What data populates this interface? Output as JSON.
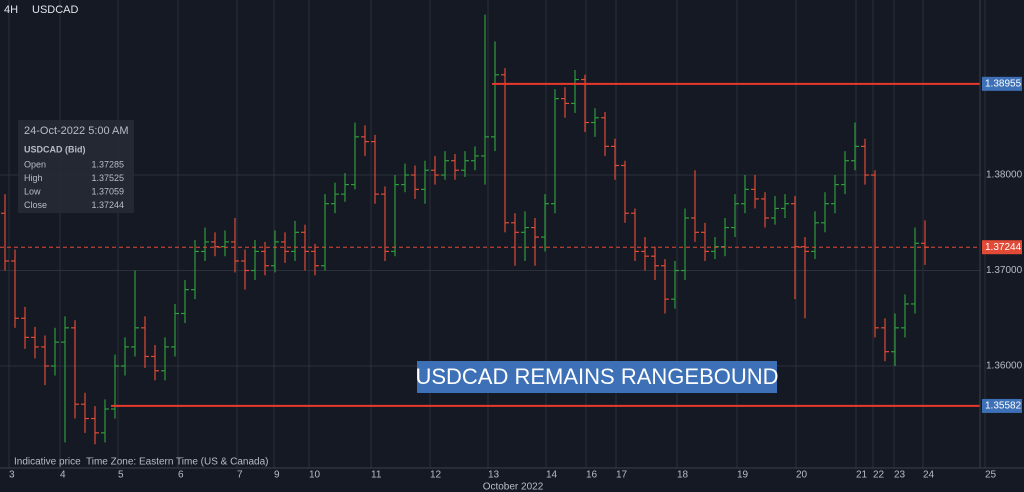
{
  "chart_data": {
    "type": "ohlc",
    "timeframe": "4H",
    "symbol": "USDCAD",
    "open": [
      1.376,
      1.371,
      1.365,
      1.363,
      1.362,
      1.36,
      1.3625,
      1.364,
      1.356,
      1.3545,
      1.353,
      1.3555,
      1.36,
      1.362,
      1.364,
      1.361,
      1.3595,
      1.362,
      1.3655,
      1.368,
      1.372,
      1.373,
      1.3725,
      1.373,
      1.371,
      1.37,
      1.372,
      1.3705,
      1.373,
      1.372,
      1.374,
      1.372,
      1.3705,
      1.377,
      1.378,
      1.379,
      1.384,
      1.3835,
      1.378,
      1.372,
      1.379,
      1.38,
      1.3785,
      1.3805,
      1.38,
      1.3815,
      1.3805,
      1.3815,
      1.382,
      1.384,
      1.3905,
      1.375,
      1.374,
      1.3745,
      1.3735,
      1.377,
      1.388,
      1.3875,
      1.39,
      1.3855,
      1.386,
      1.383,
      1.381,
      1.376,
      1.372,
      1.3715,
      1.3705,
      1.367,
      1.37,
      1.3755,
      1.374,
      1.372,
      1.3725,
      1.3745,
      1.377,
      1.3785,
      1.3775,
      1.3755,
      1.3765,
      1.377,
      1.3725,
      1.372,
      1.375,
      1.377,
      1.379,
      1.3815,
      1.383,
      1.38,
      1.364,
      1.3615,
      1.364,
      1.3665,
      1.37285
    ],
    "high": [
      1.378,
      1.3722,
      1.3662,
      1.3641,
      1.3632,
      1.364,
      1.3652,
      1.3648,
      1.3572,
      1.3558,
      1.3565,
      1.3612,
      1.363,
      1.37,
      1.3652,
      1.3622,
      1.363,
      1.3665,
      1.369,
      1.3732,
      1.3745,
      1.374,
      1.3742,
      1.3755,
      1.3722,
      1.3732,
      1.373,
      1.3742,
      1.374,
      1.3752,
      1.3748,
      1.3728,
      1.378,
      1.3792,
      1.3802,
      1.3855,
      1.3852,
      1.3842,
      1.3788,
      1.38,
      1.3812,
      1.381,
      1.3815,
      1.382,
      1.3825,
      1.3822,
      1.3825,
      1.383,
      1.3968,
      1.394,
      1.3912,
      1.376,
      1.3762,
      1.3755,
      1.378,
      1.389,
      1.3892,
      1.391,
      1.3905,
      1.387,
      1.3866,
      1.3838,
      1.3815,
      1.3765,
      1.3735,
      1.3725,
      1.3712,
      1.371,
      1.3765,
      1.3805,
      1.375,
      1.3735,
      1.3755,
      1.378,
      1.38,
      1.38,
      1.3782,
      1.3778,
      1.378,
      1.3778,
      1.3735,
      1.3762,
      1.3782,
      1.38,
      1.3825,
      1.3855,
      1.3838,
      1.3805,
      1.365,
      1.3655,
      1.3675,
      1.3745,
      1.37525
    ],
    "low": [
      1.37,
      1.364,
      1.3618,
      1.3608,
      1.358,
      1.359,
      1.352,
      1.3545,
      1.353,
      1.3518,
      1.352,
      1.3545,
      1.359,
      1.361,
      1.3598,
      1.3585,
      1.3585,
      1.361,
      1.3645,
      1.367,
      1.371,
      1.3715,
      1.3715,
      1.3698,
      1.368,
      1.369,
      1.3695,
      1.3698,
      1.3708,
      1.371,
      1.37,
      1.3695,
      1.37,
      1.376,
      1.3772,
      1.3785,
      1.382,
      1.377,
      1.371,
      1.3715,
      1.3782,
      1.3775,
      1.377,
      1.379,
      1.3795,
      1.3795,
      1.3798,
      1.3805,
      1.379,
      1.3825,
      1.374,
      1.3705,
      1.371,
      1.3705,
      1.372,
      1.376,
      1.386,
      1.3865,
      1.3845,
      1.384,
      1.382,
      1.3795,
      1.375,
      1.371,
      1.37,
      1.369,
      1.3655,
      1.366,
      1.369,
      1.373,
      1.371,
      1.3712,
      1.3715,
      1.3735,
      1.376,
      1.3765,
      1.3745,
      1.3748,
      1.3755,
      1.367,
      1.365,
      1.3712,
      1.374,
      1.376,
      1.378,
      1.3805,
      1.379,
      1.363,
      1.3605,
      1.36,
      1.363,
      1.3655,
      1.37059
    ],
    "close": [
      1.371,
      1.365,
      1.363,
      1.362,
      1.36,
      1.3625,
      1.364,
      1.356,
      1.3545,
      1.353,
      1.3555,
      1.36,
      1.362,
      1.364,
      1.361,
      1.3595,
      1.362,
      1.3655,
      1.368,
      1.372,
      1.373,
      1.3725,
      1.373,
      1.371,
      1.37,
      1.372,
      1.3705,
      1.373,
      1.372,
      1.374,
      1.372,
      1.3705,
      1.377,
      1.378,
      1.379,
      1.384,
      1.3835,
      1.378,
      1.372,
      1.379,
      1.38,
      1.3785,
      1.3805,
      1.38,
      1.3815,
      1.3805,
      1.3815,
      1.382,
      1.384,
      1.3905,
      1.375,
      1.374,
      1.3745,
      1.3735,
      1.377,
      1.388,
      1.3875,
      1.39,
      1.3855,
      1.386,
      1.383,
      1.381,
      1.376,
      1.372,
      1.3715,
      1.3705,
      1.367,
      1.37,
      1.3755,
      1.374,
      1.372,
      1.3725,
      1.3745,
      1.377,
      1.3785,
      1.3775,
      1.3755,
      1.3765,
      1.377,
      1.3725,
      1.372,
      1.375,
      1.377,
      1.379,
      1.3815,
      1.383,
      1.38,
      1.364,
      1.3615,
      1.364,
      1.3665,
      1.37285,
      1.37244
    ],
    "up_color": "#2f9b3b",
    "down_color": "#e04a36",
    "ylim": [
      1.34932,
      1.39833
    ],
    "yticks": [
      {
        "value": 1.36,
        "label": "1.36000"
      },
      {
        "value": 1.37,
        "label": "1.37000"
      },
      {
        "value": 1.38,
        "label": "1.38000"
      }
    ],
    "xlim": [
      -0.5,
      97.5
    ],
    "xticks": [
      {
        "value": 0.4,
        "label": "3"
      },
      {
        "value": 5.5,
        "label": "4"
      },
      {
        "value": 11.3,
        "label": "5"
      },
      {
        "value": 17.3,
        "label": "6"
      },
      {
        "value": 23.2,
        "label": "7"
      },
      {
        "value": 26.9,
        "label": "9"
      },
      {
        "value": 30.4,
        "label": "10"
      },
      {
        "value": 36.6,
        "label": "11"
      },
      {
        "value": 42.5,
        "label": "12"
      },
      {
        "value": 48.3,
        "label": "13"
      },
      {
        "value": 54.1,
        "label": "14"
      },
      {
        "value": 58.1,
        "label": "16"
      },
      {
        "value": 61.1,
        "label": "17"
      },
      {
        "value": 67.2,
        "label": "18"
      },
      {
        "value": 73.2,
        "label": "19"
      },
      {
        "value": 79.1,
        "label": "20"
      },
      {
        "value": 85.1,
        "label": "21"
      },
      {
        "value": 86.8,
        "label": "22"
      },
      {
        "value": 88.9,
        "label": "23"
      },
      {
        "value": 91.8,
        "label": "24"
      },
      {
        "value": 98.0,
        "label": "25"
      }
    ],
    "x_title": "October 2022",
    "grid": true,
    "levels": [
      {
        "value": 1.38955,
        "from": 48.7
      },
      {
        "value": 1.35582,
        "from": 10.6
      }
    ],
    "level_color": "#e8392d",
    "annotation": "USDCAD REMAINS RANGEBOUND",
    "footer": [
      "Indicative price",
      "Time Zone: Eastern Time (US & Canada)"
    ],
    "tooltip": {
      "date": "24-Oct-2022 5:00 AM",
      "title": "USDCAD (Bid)",
      "labels": [
        "Open",
        "High",
        "Low",
        "Close"
      ]
    }
  }
}
